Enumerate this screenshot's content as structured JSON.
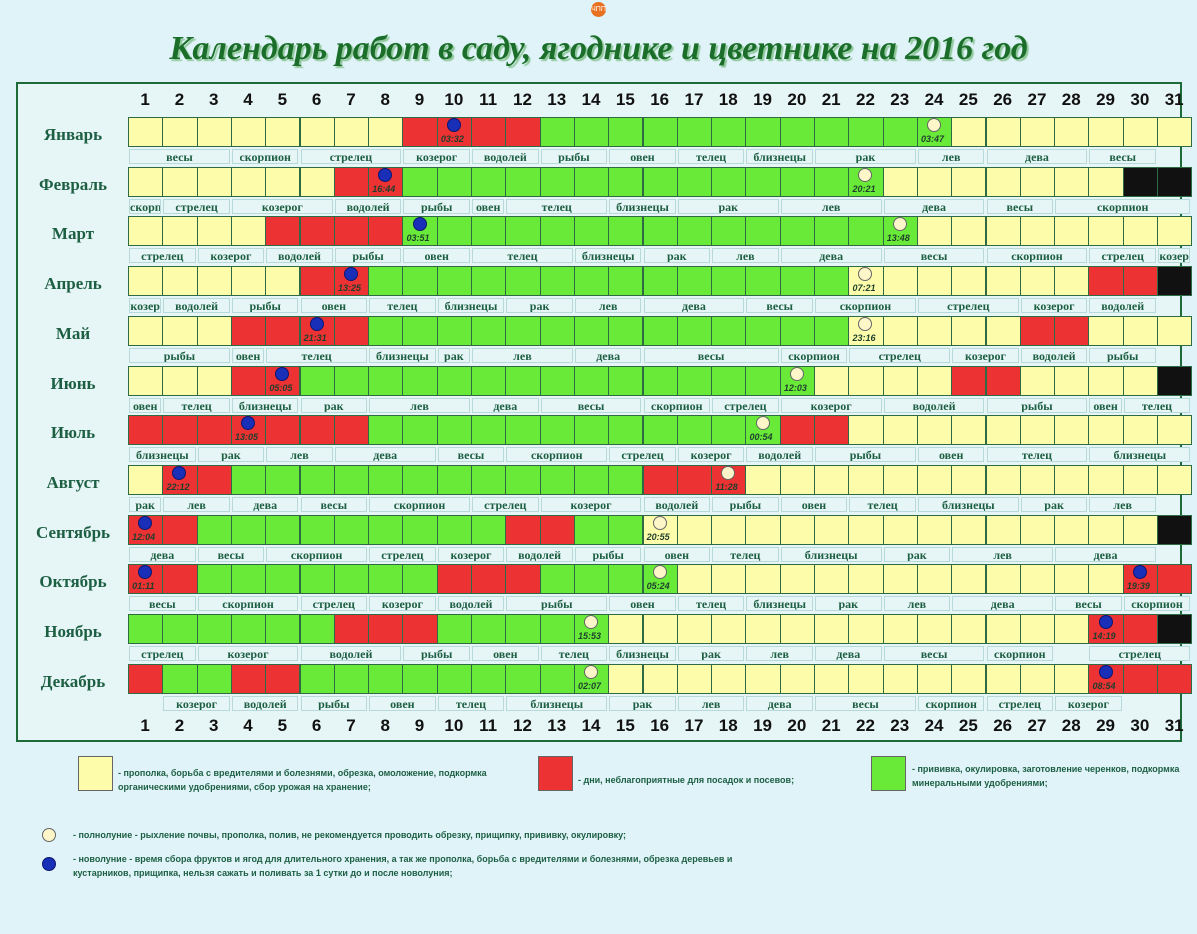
{
  "logo_text": "ЧПП",
  "title": "Календарь работ в саду, ягоднике и цветнике на 2016  год",
  "days": [
    "1",
    "2",
    "3",
    "4",
    "5",
    "6",
    "7",
    "8",
    "9",
    "10",
    "11",
    "12",
    "13",
    "14",
    "15",
    "16",
    "17",
    "18",
    "19",
    "20",
    "21",
    "22",
    "23",
    "24",
    "25",
    "26",
    "27",
    "28",
    "29",
    "30",
    "31"
  ],
  "colors": {
    "yellow": "#fdfcaa",
    "red": "#ec3232",
    "green": "#69ea38",
    "frame": "#1e6b3a",
    "title": "#1a6e2a"
  },
  "months": [
    {
      "name": "Январь",
      "cells": "YYYYYYYYRRRRGGGGGGGGGGGGYYYYYYY",
      "moons": [
        {
          "type": "new",
          "day": 10,
          "time": "03:32"
        },
        {
          "type": "full",
          "day": 24,
          "time": "03:47"
        }
      ],
      "zodiac": [
        {
          "name": "весы",
          "from": 1,
          "to": 3
        },
        {
          "name": "скорпион",
          "from": 4,
          "to": 5
        },
        {
          "name": "стрелец",
          "from": 6,
          "to": 8
        },
        {
          "name": "козерог",
          "from": 9,
          "to": 10
        },
        {
          "name": "водолей",
          "from": 11,
          "to": 12
        },
        {
          "name": "рыбы",
          "from": 13,
          "to": 14
        },
        {
          "name": "овен",
          "from": 15,
          "to": 16
        },
        {
          "name": "телец",
          "from": 17,
          "to": 18
        },
        {
          "name": "близнецы",
          "from": 19,
          "to": 20
        },
        {
          "name": "рак",
          "from": 21,
          "to": 23
        },
        {
          "name": "лев",
          "from": 24,
          "to": 25
        },
        {
          "name": "дева",
          "from": 26,
          "to": 28
        },
        {
          "name": "весы",
          "from": 29,
          "to": 30
        }
      ]
    },
    {
      "name": "Февраль",
      "cells": "YYYYYYRRGGGGGGGGGGGGGGYYYYYYYKK",
      "moons": [
        {
          "type": "new",
          "day": 8,
          "time": "16:44"
        },
        {
          "type": "full",
          "day": 22,
          "time": "20:21"
        }
      ],
      "zodiac": [
        {
          "name": "скорпион",
          "from": 1,
          "to": 1
        },
        {
          "name": "стрелец",
          "from": 2,
          "to": 3
        },
        {
          "name": "козерог",
          "from": 4,
          "to": 6
        },
        {
          "name": "водолей",
          "from": 7,
          "to": 8
        },
        {
          "name": "рыбы",
          "from": 9,
          "to": 10
        },
        {
          "name": "овен",
          "from": 11,
          "to": 11
        },
        {
          "name": "телец",
          "from": 12,
          "to": 14
        },
        {
          "name": "близнецы",
          "from": 15,
          "to": 16
        },
        {
          "name": "рак",
          "from": 17,
          "to": 19
        },
        {
          "name": "лев",
          "from": 20,
          "to": 22
        },
        {
          "name": "дева",
          "from": 23,
          "to": 25
        },
        {
          "name": "весы",
          "from": 26,
          "to": 27
        },
        {
          "name": "скорпион",
          "from": 28,
          "to": 31
        }
      ]
    },
    {
      "name": "Март",
      "cells": "YYYYRRRRGGGGGGGGGGGGGGGYYYYYYYY",
      "moons": [
        {
          "type": "new",
          "day": 9,
          "time": "03:51"
        },
        {
          "type": "full",
          "day": 23,
          "time": "13:48"
        }
      ],
      "zodiac": [
        {
          "name": "стрелец",
          "from": 1,
          "to": 2
        },
        {
          "name": "козерог",
          "from": 3,
          "to": 4
        },
        {
          "name": "водолей",
          "from": 5,
          "to": 6
        },
        {
          "name": "рыбы",
          "from": 7,
          "to": 8
        },
        {
          "name": "овен",
          "from": 9,
          "to": 10
        },
        {
          "name": "телец",
          "from": 11,
          "to": 13
        },
        {
          "name": "близнецы",
          "from": 14,
          "to": 15
        },
        {
          "name": "рак",
          "from": 16,
          "to": 17
        },
        {
          "name": "лев",
          "from": 18,
          "to": 19
        },
        {
          "name": "дева",
          "from": 20,
          "to": 22
        },
        {
          "name": "весы",
          "from": 23,
          "to": 25
        },
        {
          "name": "скорпион",
          "from": 26,
          "to": 28
        },
        {
          "name": "стрелец",
          "from": 29,
          "to": 30
        },
        {
          "name": "козер",
          "from": 31,
          "to": 31
        }
      ]
    },
    {
      "name": "Апрель",
      "cells": "YYYYYRRGGGGGGGGGGGGGGYYYYYYYRRK",
      "moons": [
        {
          "type": "new",
          "day": 7,
          "time": "13:25"
        },
        {
          "type": "full",
          "day": 22,
          "time": "07:21"
        }
      ],
      "zodiac": [
        {
          "name": "козер",
          "from": 1,
          "to": 1
        },
        {
          "name": "водолей",
          "from": 2,
          "to": 3
        },
        {
          "name": "рыбы",
          "from": 4,
          "to": 5
        },
        {
          "name": "овен",
          "from": 6,
          "to": 7
        },
        {
          "name": "телец",
          "from": 8,
          "to": 9
        },
        {
          "name": "близнецы",
          "from": 10,
          "to": 11
        },
        {
          "name": "рак",
          "from": 12,
          "to": 13
        },
        {
          "name": "лев",
          "from": 14,
          "to": 15
        },
        {
          "name": "дева",
          "from": 16,
          "to": 18
        },
        {
          "name": "весы",
          "from": 19,
          "to": 20
        },
        {
          "name": "скорпион",
          "from": 21,
          "to": 23
        },
        {
          "name": "стрелец",
          "from": 24,
          "to": 26
        },
        {
          "name": "козерог",
          "from": 27,
          "to": 28
        },
        {
          "name": "водолей",
          "from": 29,
          "to": 30
        }
      ]
    },
    {
      "name": "Май",
      "cells": "YYYRRRRGGGGGGGGGGGGGGYYYYYRRYYY",
      "moons": [
        {
          "type": "new",
          "day": 6,
          "time": "21:31"
        },
        {
          "type": "full",
          "day": 22,
          "time": "23:16"
        }
      ],
      "zodiac": [
        {
          "name": "рыбы",
          "from": 1,
          "to": 3
        },
        {
          "name": "овен",
          "from": 4,
          "to": 4
        },
        {
          "name": "телец",
          "from": 5,
          "to": 7
        },
        {
          "name": "близнецы",
          "from": 8,
          "to": 9
        },
        {
          "name": "рак",
          "from": 10,
          "to": 10
        },
        {
          "name": "лев",
          "from": 11,
          "to": 13
        },
        {
          "name": "дева",
          "from": 14,
          "to": 15
        },
        {
          "name": "весы",
          "from": 16,
          "to": 19
        },
        {
          "name": "скорпион",
          "from": 20,
          "to": 21
        },
        {
          "name": "стрелец",
          "from": 22,
          "to": 24
        },
        {
          "name": "козерог",
          "from": 25,
          "to": 26
        },
        {
          "name": "водолей",
          "from": 27,
          "to": 28
        },
        {
          "name": "рыбы",
          "from": 29,
          "to": 30
        }
      ]
    },
    {
      "name": "Июнь",
      "cells": "YYYRRGGGGGGGGGGGGGGGYYYYRRYYYYK",
      "moons": [
        {
          "type": "new",
          "day": 5,
          "time": "05:05"
        },
        {
          "type": "full",
          "day": 20,
          "time": "12:03"
        }
      ],
      "zodiac": [
        {
          "name": "овен",
          "from": 1,
          "to": 1
        },
        {
          "name": "телец",
          "from": 2,
          "to": 3
        },
        {
          "name": "близнецы",
          "from": 4,
          "to": 5
        },
        {
          "name": "рак",
          "from": 6,
          "to": 7
        },
        {
          "name": "лев",
          "from": 8,
          "to": 10
        },
        {
          "name": "дева",
          "from": 11,
          "to": 12
        },
        {
          "name": "весы",
          "from": 13,
          "to": 15
        },
        {
          "name": "скорпион",
          "from": 16,
          "to": 17
        },
        {
          "name": "стрелец",
          "from": 18,
          "to": 19
        },
        {
          "name": "козерог",
          "from": 20,
          "to": 22
        },
        {
          "name": "водолей",
          "from": 23,
          "to": 25
        },
        {
          "name": "рыбы",
          "from": 26,
          "to": 28
        },
        {
          "name": "овен",
          "from": 29,
          "to": 29
        },
        {
          "name": "телец",
          "from": 30,
          "to": 31
        }
      ]
    },
    {
      "name": "Июль",
      "cells": "RRRRRRRGGGGGGGGGGGGRRYYYYYYYYYY",
      "moons": [
        {
          "type": "new",
          "day": 4,
          "time": "13:05"
        },
        {
          "type": "full",
          "day": 19,
          "time": "00:54"
        }
      ],
      "zodiac": [
        {
          "name": "близнецы",
          "from": 1,
          "to": 2
        },
        {
          "name": "рак",
          "from": 3,
          "to": 4
        },
        {
          "name": "лев",
          "from": 5,
          "to": 6
        },
        {
          "name": "дева",
          "from": 7,
          "to": 9
        },
        {
          "name": "весы",
          "from": 10,
          "to": 11
        },
        {
          "name": "скорпион",
          "from": 12,
          "to": 14
        },
        {
          "name": "стрелец",
          "from": 15,
          "to": 16
        },
        {
          "name": "козерог",
          "from": 17,
          "to": 18
        },
        {
          "name": "водолей",
          "from": 19,
          "to": 20
        },
        {
          "name": "рыбы",
          "from": 21,
          "to": 23
        },
        {
          "name": "овен",
          "from": 24,
          "to": 25
        },
        {
          "name": "телец",
          "from": 26,
          "to": 28
        },
        {
          "name": "близнецы",
          "from": 29,
          "to": 31
        }
      ]
    },
    {
      "name": "Август",
      "cells": "YRRGGGGGGGGGGGGRRRYYYYYYYYYYYYY",
      "moons": [
        {
          "type": "new",
          "day": 2,
          "time": "22:12"
        },
        {
          "type": "full",
          "day": 18,
          "time": "11:28"
        }
      ],
      "zodiac": [
        {
          "name": "рак",
          "from": 1,
          "to": 1
        },
        {
          "name": "лев",
          "from": 2,
          "to": 3
        },
        {
          "name": "дева",
          "from": 4,
          "to": 5
        },
        {
          "name": "весы",
          "from": 6,
          "to": 7
        },
        {
          "name": "скорпион",
          "from": 8,
          "to": 10
        },
        {
          "name": "стрелец",
          "from": 11,
          "to": 12
        },
        {
          "name": "козерог",
          "from": 13,
          "to": 15
        },
        {
          "name": "водолей",
          "from": 16,
          "to": 17
        },
        {
          "name": "рыбы",
          "from": 18,
          "to": 19
        },
        {
          "name": "овен",
          "from": 20,
          "to": 21
        },
        {
          "name": "телец",
          "from": 22,
          "to": 23
        },
        {
          "name": "близнецы",
          "from": 24,
          "to": 26
        },
        {
          "name": "рак",
          "from": 27,
          "to": 28
        },
        {
          "name": "лев",
          "from": 29,
          "to": 30
        }
      ]
    },
    {
      "name": "Сентябрь",
      "cells": "RRGGGGGGGGGRRGGYYYYYYYYYYYYYYYK",
      "moons": [
        {
          "type": "new",
          "day": 1,
          "time": "12:04"
        },
        {
          "type": "full",
          "day": 16,
          "time": "20:55"
        }
      ],
      "zodiac": [
        {
          "name": "дева",
          "from": 1,
          "to": 2
        },
        {
          "name": "весы",
          "from": 3,
          "to": 4
        },
        {
          "name": "скорпион",
          "from": 5,
          "to": 7
        },
        {
          "name": "стрелец",
          "from": 8,
          "to": 9
        },
        {
          "name": "козерог",
          "from": 10,
          "to": 11
        },
        {
          "name": "водолей",
          "from": 12,
          "to": 13
        },
        {
          "name": "рыбы",
          "from": 14,
          "to": 15
        },
        {
          "name": "овен",
          "from": 16,
          "to": 17
        },
        {
          "name": "телец",
          "from": 18,
          "to": 19
        },
        {
          "name": "близнецы",
          "from": 20,
          "to": 22
        },
        {
          "name": "рак",
          "from": 23,
          "to": 24
        },
        {
          "name": "лев",
          "from": 25,
          "to": 27
        },
        {
          "name": "дева",
          "from": 28,
          "to": 30
        }
      ]
    },
    {
      "name": "Октябрь",
      "cells": "RRGGGGGGGRRRGGGGYYYYYYYYYYYYYRR",
      "moons": [
        {
          "type": "new",
          "day": 1,
          "time": "01:11"
        },
        {
          "type": "full",
          "day": 16,
          "time": "05:24"
        },
        {
          "type": "new",
          "day": 30,
          "time": "19:39"
        }
      ],
      "zodiac": [
        {
          "name": "весы",
          "from": 1,
          "to": 2
        },
        {
          "name": "скорпион",
          "from": 3,
          "to": 5
        },
        {
          "name": "стрелец",
          "from": 6,
          "to": 7
        },
        {
          "name": "козерог",
          "from": 8,
          "to": 9
        },
        {
          "name": "водолей",
          "from": 10,
          "to": 11
        },
        {
          "name": "рыбы",
          "from": 12,
          "to": 14
        },
        {
          "name": "овен",
          "from": 15,
          "to": 16
        },
        {
          "name": "телец",
          "from": 17,
          "to": 18
        },
        {
          "name": "близнецы",
          "from": 19,
          "to": 20
        },
        {
          "name": "рак",
          "from": 21,
          "to": 22
        },
        {
          "name": "лев",
          "from": 23,
          "to": 24
        },
        {
          "name": "дева",
          "from": 25,
          "to": 27
        },
        {
          "name": "весы",
          "from": 28,
          "to": 29
        },
        {
          "name": "скорпион",
          "from": 30,
          "to": 31
        }
      ]
    },
    {
      "name": "Ноябрь",
      "cells": "GGGGGGRRRGGGGGYYYYYYYYYYYYYYRRK",
      "moons": [
        {
          "type": "full",
          "day": 14,
          "time": "15:53"
        },
        {
          "type": "new",
          "day": 29,
          "time": "14:19"
        }
      ],
      "zodiac": [
        {
          "name": "стрелец",
          "from": 1,
          "to": 2
        },
        {
          "name": "козерог",
          "from": 3,
          "to": 5
        },
        {
          "name": "водолей",
          "from": 6,
          "to": 8
        },
        {
          "name": "рыбы",
          "from": 9,
          "to": 10
        },
        {
          "name": "овен",
          "from": 11,
          "to": 12
        },
        {
          "name": "телец",
          "from": 13,
          "to": 14
        },
        {
          "name": "близнецы",
          "from": 15,
          "to": 16
        },
        {
          "name": "рак",
          "from": 17,
          "to": 18
        },
        {
          "name": "лев",
          "from": 19,
          "to": 20
        },
        {
          "name": "дева",
          "from": 21,
          "to": 22
        },
        {
          "name": "весы",
          "from": 23,
          "to": 25
        },
        {
          "name": "скорпион",
          "from": 26,
          "to": 27
        },
        {
          "name": "стрелец",
          "from": 29,
          "to": 31
        }
      ]
    },
    {
      "name": "Декабрь",
      "cells": "RGGRRGGGGGGGGGYYYYYYYYYYYYYYRRR",
      "moons": [
        {
          "type": "full",
          "day": 14,
          "time": "02:07"
        },
        {
          "type": "new",
          "day": 29,
          "time": "08:54"
        }
      ],
      "zodiac": [
        {
          "name": "козерог",
          "from": 2,
          "to": 3
        },
        {
          "name": "водолей",
          "from": 4,
          "to": 5
        },
        {
          "name": "рыбы",
          "from": 6,
          "to": 7
        },
        {
          "name": "овен",
          "from": 8,
          "to": 9
        },
        {
          "name": "телец",
          "from": 10,
          "to": 11
        },
        {
          "name": "близнецы",
          "from": 12,
          "to": 14
        },
        {
          "name": "рак",
          "from": 15,
          "to": 16
        },
        {
          "name": "лев",
          "from": 17,
          "to": 18
        },
        {
          "name": "дева",
          "from": 19,
          "to": 20
        },
        {
          "name": "весы",
          "from": 21,
          "to": 23
        },
        {
          "name": "скорпион",
          "from": 24,
          "to": 25
        },
        {
          "name": "стрелец",
          "from": 26,
          "to": 27
        },
        {
          "name": "козерог",
          "from": 28,
          "to": 29
        }
      ]
    }
  ],
  "legend": {
    "yellow_text": "-  прополка, борьба с вредителями и болезнями, обрезка, омоложение, подкормка органическими удобрениями, сбор урожая на хранение;",
    "red_text": "-  дни, неблагоприятные для посадок и посевов;",
    "green_text": "-  прививка, окулировка, заготовление черенков, подкормка минеральными удобрениями;",
    "full_moon_text": "-   полнолуние - рыхление почвы,  прополка, полив, не рекомендуется проводить обрезку, прищипку, прививку, окулировку;",
    "new_moon_text": "-   новолуние - время сбора фруктов и ягод для длительного хранения, а так же прополка, борьба с вредителями и болезнями, обрезка деревьев и кустарников, прищипка, нельзя сажать и поливать за 1 сутки до и после новолуния;"
  }
}
